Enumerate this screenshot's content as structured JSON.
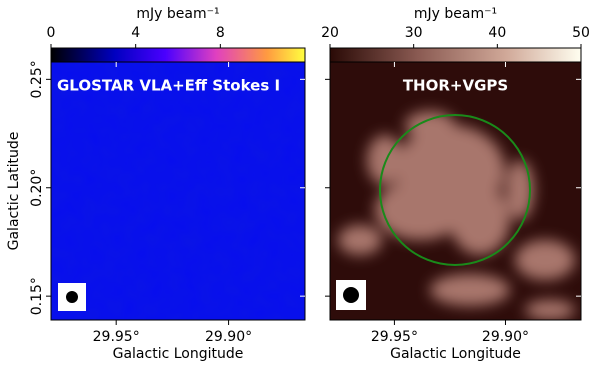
{
  "chart_data": [
    {
      "type": "image",
      "title": "GLOSTAR VLA+Eff Stokes I",
      "cbar_label": "mJy beam⁻¹",
      "cbar_lim": [
        0,
        12
      ],
      "cbar_ticks": [
        0,
        4,
        8
      ],
      "xlabel": "Galactic Longitude",
      "ylabel": "Galactic Latitude",
      "xlim": [
        29.979,
        29.866
      ],
      "ylim": [
        0.139,
        0.258
      ],
      "xticks": [
        {
          "value": 29.95,
          "label": "29.95°"
        },
        {
          "value": 29.9,
          "label": "29.90°"
        }
      ],
      "yticks": [
        {
          "value": 0.15,
          "label": "0.15°"
        },
        {
          "value": 0.2,
          "label": "0.20°"
        },
        {
          "value": 0.25,
          "label": "0.25°"
        }
      ]
    },
    {
      "type": "image",
      "title": "THOR+VGPS",
      "cbar_label": "mJy beam⁻¹",
      "cbar_lim": [
        20,
        50
      ],
      "cbar_ticks": [
        20,
        30,
        40,
        50
      ],
      "xlabel": "Galactic Longitude",
      "xlim": [
        29.979,
        29.866
      ],
      "ylim": [
        0.139,
        0.258
      ],
      "xticks": [
        {
          "value": 29.95,
          "label": "29.95°"
        },
        {
          "value": 29.9,
          "label": "29.90°"
        }
      ],
      "yticks": [
        0.15,
        0.2,
        0.25
      ]
    }
  ]
}
